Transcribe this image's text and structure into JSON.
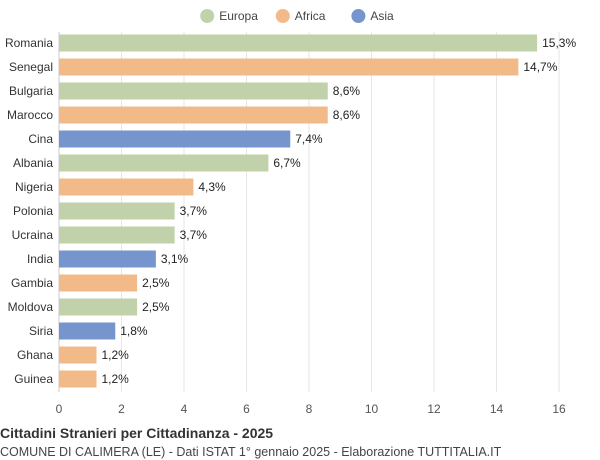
{
  "chart_data": {
    "type": "bar",
    "orientation": "horizontal",
    "title": "Cittadini Stranieri per Cittadinanza - 2025",
    "subtitle": "COMUNE DI CALIMERA (LE) - Dati ISTAT 1° gennaio 2025 - Elaborazione TUTTITALIA.IT",
    "legend": [
      {
        "name": "Europa",
        "color": "#c1d1a9"
      },
      {
        "name": "Africa",
        "color": "#f2ba88"
      },
      {
        "name": "Asia",
        "color": "#7595cc"
      }
    ],
    "legend_position": "top-center",
    "xlim": [
      0,
      16
    ],
    "xticks": [
      0,
      2,
      4,
      6,
      8,
      10,
      12,
      14,
      16
    ],
    "grid": true,
    "bars": [
      {
        "category": "Romania",
        "value": 15.3,
        "label": "15,3%",
        "group": "Europa"
      },
      {
        "category": "Senegal",
        "value": 14.7,
        "label": "14,7%",
        "group": "Africa"
      },
      {
        "category": "Bulgaria",
        "value": 8.6,
        "label": "8,6%",
        "group": "Europa"
      },
      {
        "category": "Marocco",
        "value": 8.6,
        "label": "8,6%",
        "group": "Africa"
      },
      {
        "category": "Cina",
        "value": 7.4,
        "label": "7,4%",
        "group": "Asia"
      },
      {
        "category": "Albania",
        "value": 6.7,
        "label": "6,7%",
        "group": "Europa"
      },
      {
        "category": "Nigeria",
        "value": 4.3,
        "label": "4,3%",
        "group": "Africa"
      },
      {
        "category": "Polonia",
        "value": 3.7,
        "label": "3,7%",
        "group": "Europa"
      },
      {
        "category": "Ucraina",
        "value": 3.7,
        "label": "3,7%",
        "group": "Europa"
      },
      {
        "category": "India",
        "value": 3.1,
        "label": "3,1%",
        "group": "Asia"
      },
      {
        "category": "Gambia",
        "value": 2.5,
        "label": "2,5%",
        "group": "Africa"
      },
      {
        "category": "Moldova",
        "value": 2.5,
        "label": "2,5%",
        "group": "Europa"
      },
      {
        "category": "Siria",
        "value": 1.8,
        "label": "1,8%",
        "group": "Asia"
      },
      {
        "category": "Ghana",
        "value": 1.2,
        "label": "1,2%",
        "group": "Africa"
      },
      {
        "category": "Guinea",
        "value": 1.2,
        "label": "1,2%",
        "group": "Africa"
      }
    ]
  }
}
